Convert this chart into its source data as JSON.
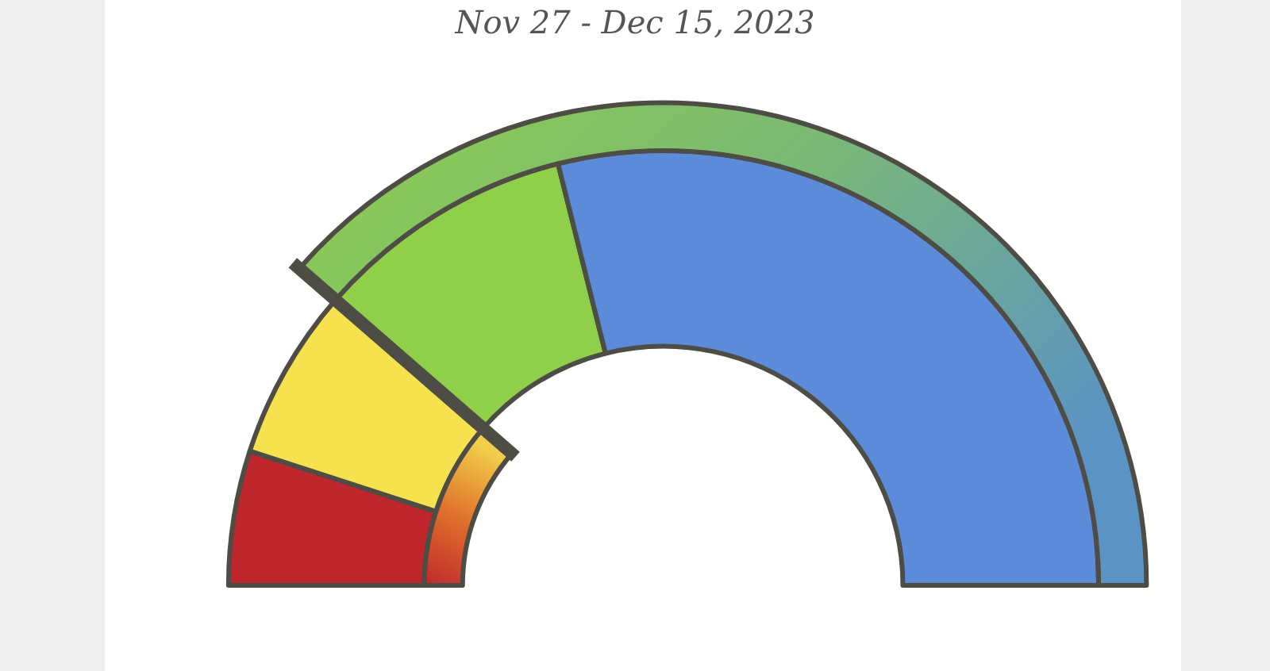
{
  "chart_data": {
    "type": "donut",
    "title": "Nov 27 - Dec 15, 2023",
    "categories": [
      null,
      null,
      null,
      null
    ],
    "values": [
      10,
      12.8,
      19.4,
      57.8
    ],
    "colors": [
      "#c0272d",
      "#f5e24e",
      "#8fcf4a",
      "#5b8bd9"
    ],
    "legend": false
  }
}
